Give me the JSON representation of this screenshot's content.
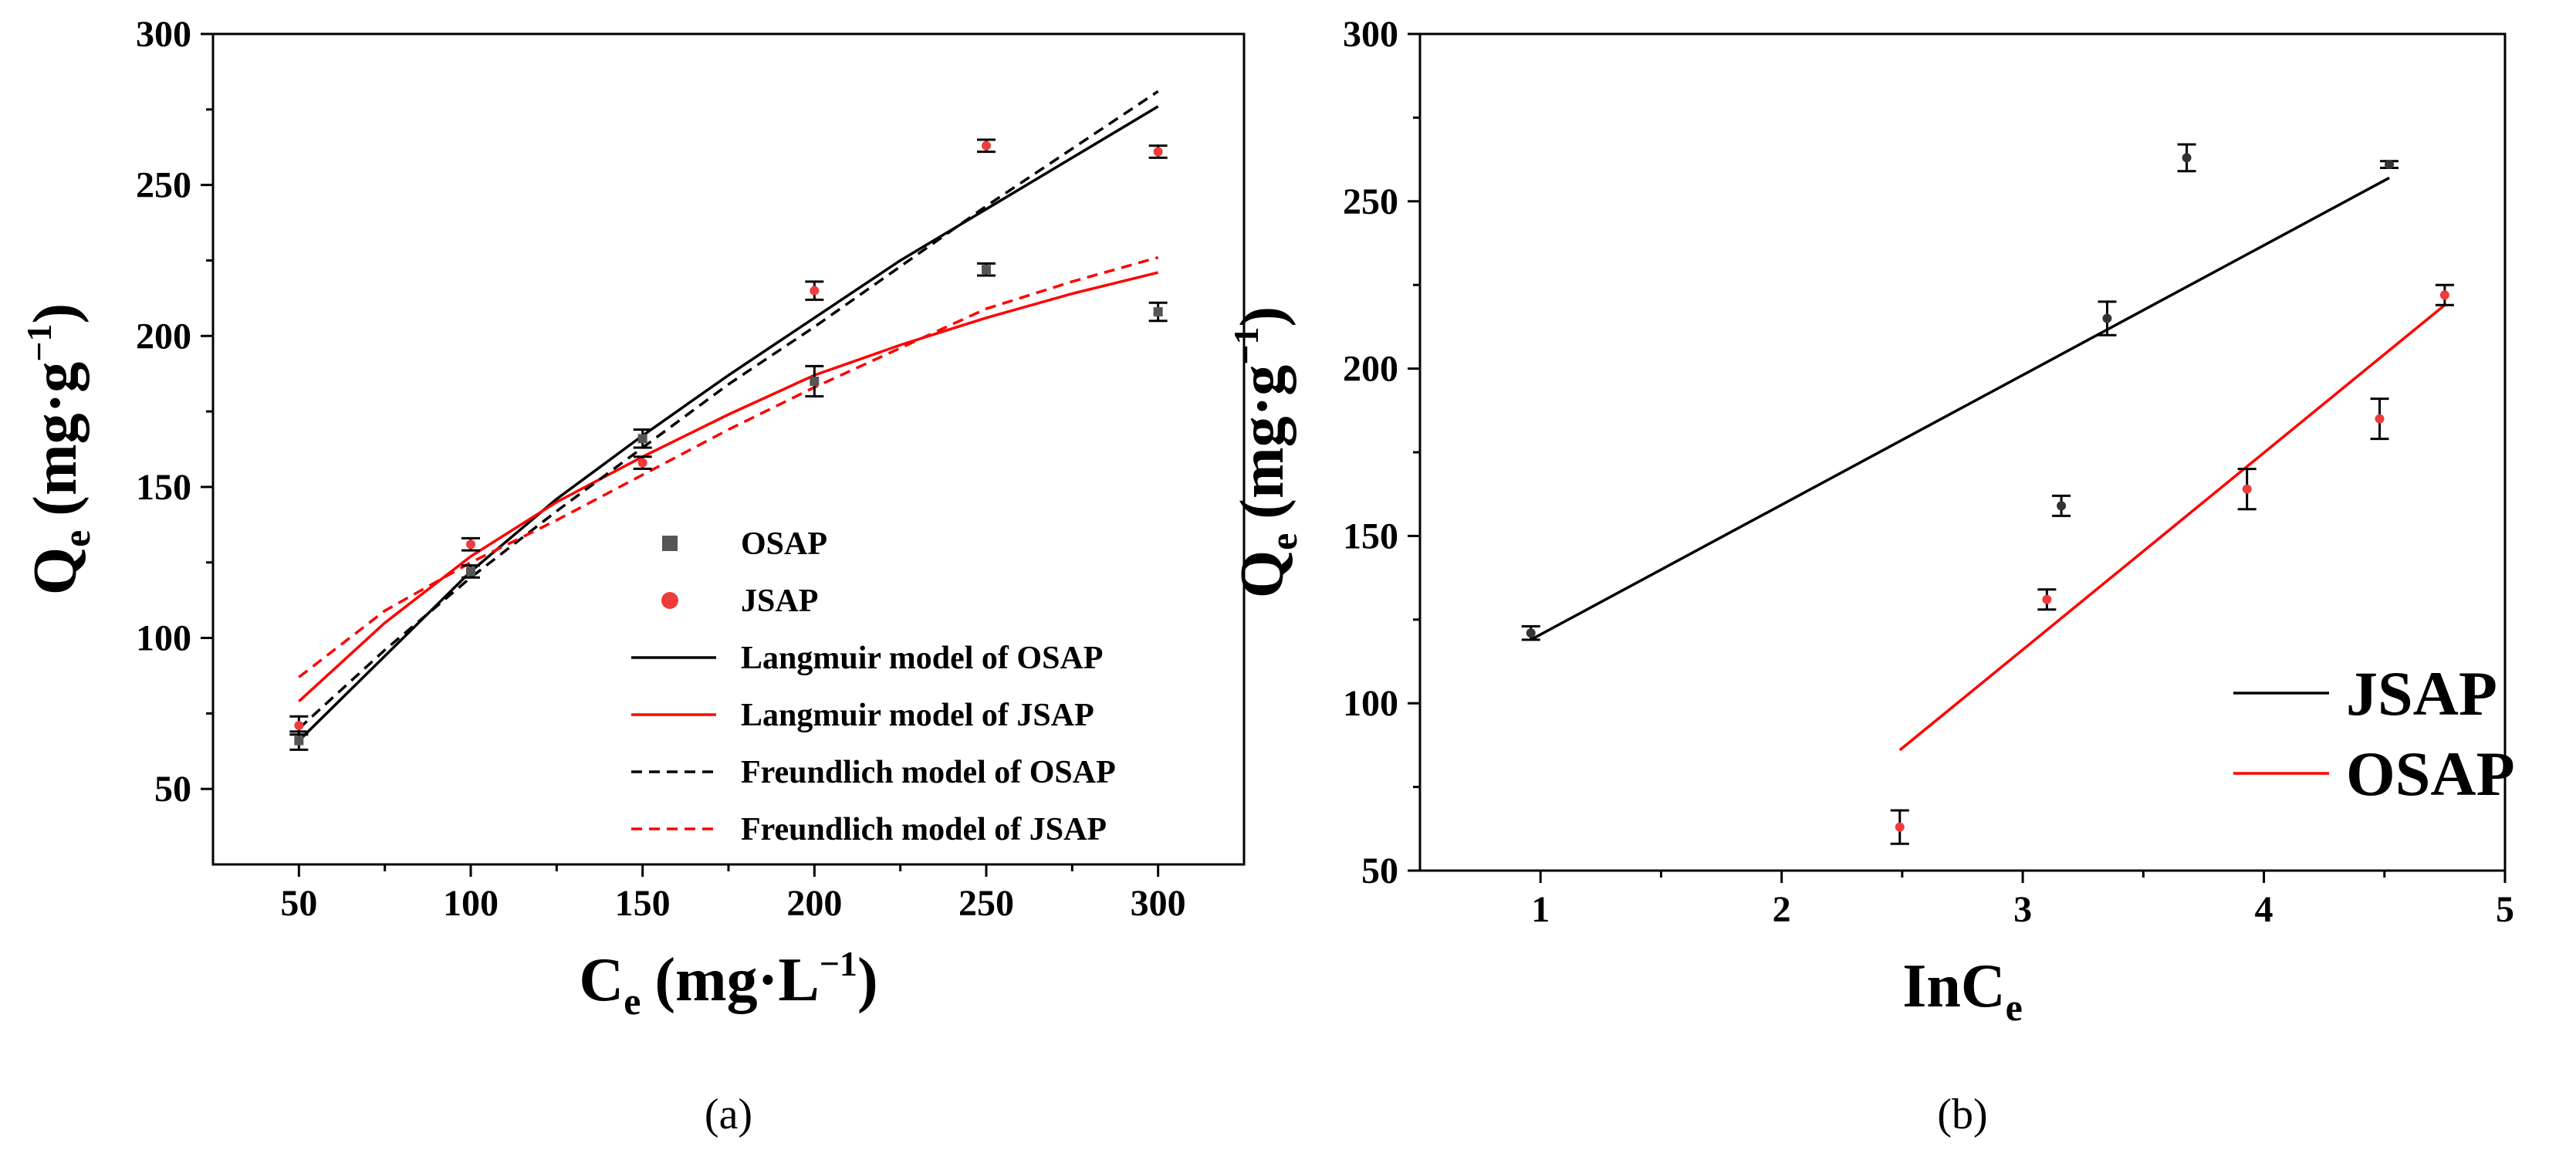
{
  "chart_data": [
    {
      "type": "scatter",
      "panel_label": "(a)",
      "xlabel": {
        "base": "C",
        "sub": "e",
        "units": "(mg·L",
        "sup": "−1",
        "close": ")"
      },
      "ylabel": {
        "base": "Q",
        "sub": "e",
        "units": "(mg·g",
        "sup": "−1",
        "close": ")"
      },
      "xlim": [
        25,
        325
      ],
      "ylim": [
        25,
        300
      ],
      "xticks": [
        50,
        100,
        150,
        200,
        250,
        300
      ],
      "yticks": [
        50,
        100,
        150,
        200,
        250,
        300
      ],
      "legend_position": "center-right",
      "points": [
        {
          "name": "OSAP",
          "color": "#555555",
          "x": [
            50,
            100,
            150,
            200,
            250,
            300
          ],
          "y": [
            66,
            122,
            166,
            185,
            222,
            208
          ],
          "err": [
            3,
            2,
            3,
            5,
            2,
            3
          ]
        },
        {
          "name": "JSAP",
          "color": "#ee3b3b",
          "x": [
            50,
            100,
            150,
            200,
            250,
            300
          ],
          "y": [
            71,
            131,
            158,
            215,
            263,
            261
          ],
          "err": [
            3,
            2,
            2,
            3,
            2,
            2
          ]
        }
      ],
      "fits": [
        {
          "name": "Langmuir model of OSAP",
          "color": "#000000",
          "dashed": false,
          "x": [
            50,
            75,
            100,
            125,
            150,
            175,
            200,
            225,
            250,
            275,
            300
          ],
          "y": [
            66,
            94,
            122,
            146,
            167,
            187,
            206,
            225,
            242,
            259,
            276
          ]
        },
        {
          "name": "Langmuir model of JSAP",
          "color": "#ff0000",
          "dashed": false,
          "x": [
            50,
            75,
            100,
            125,
            150,
            175,
            200,
            225,
            250,
            275,
            300
          ],
          "y": [
            79,
            105,
            127,
            145,
            160,
            174,
            187,
            197,
            206,
            214,
            221
          ]
        },
        {
          "name": "Freundlich model of OSAP",
          "color": "#000000",
          "dashed": true,
          "x": [
            50,
            75,
            100,
            125,
            150,
            175,
            200,
            225,
            250,
            275,
            300
          ],
          "y": [
            70,
            96,
            120,
            142,
            163,
            184,
            203,
            223,
            243,
            262,
            281
          ]
        },
        {
          "name": "Freundlich model of JSAP",
          "color": "#ff0000",
          "dashed": true,
          "x": [
            50,
            75,
            100,
            125,
            150,
            175,
            200,
            225,
            250,
            275,
            300
          ],
          "y": [
            87,
            109,
            125,
            139,
            154,
            169,
            183,
            196,
            209,
            218,
            226
          ]
        }
      ],
      "legend": [
        "OSAP",
        "JSAP",
        "Langmuir model of OSAP",
        "Langmuir model of JSAP",
        "Freundlich model of OSAP",
        "Freundlich model of JSAP"
      ]
    },
    {
      "type": "scatter",
      "panel_label": "(b)",
      "xlabel": {
        "base": "InC",
        "sub": "e"
      },
      "ylabel": {
        "base": "Q",
        "sub": "e",
        "units": "(mg·g",
        "sup": "−1",
        "close": ")"
      },
      "xlim": [
        0.5,
        5
      ],
      "ylim": [
        50,
        300
      ],
      "xticks": [
        1,
        2,
        3,
        4,
        5
      ],
      "yticks": [
        50,
        100,
        150,
        200,
        250,
        300
      ],
      "legend_position": "bottom-right",
      "points": [
        {
          "name": "black points",
          "color": "#333333",
          "x": [
            0.96,
            3.16,
            3.35,
            3.68,
            4.52
          ],
          "y": [
            121,
            159,
            215,
            263,
            261
          ],
          "err": [
            2,
            3,
            5,
            4,
            1
          ]
        },
        {
          "name": "red points",
          "color": "#ee3b3b",
          "x": [
            2.49,
            3.1,
            3.93,
            4.48,
            4.75
          ],
          "y": [
            63,
            131,
            164,
            185,
            222
          ],
          "err": [
            5,
            3,
            6,
            6,
            3
          ]
        }
      ],
      "fits": [
        {
          "name": "JSAP",
          "color": "#000000",
          "dashed": false,
          "x": [
            0.96,
            4.52
          ],
          "y": [
            119,
            257
          ]
        },
        {
          "name": "OSAP",
          "color": "#ff0000",
          "dashed": false,
          "x": [
            2.49,
            4.75
          ],
          "y": [
            86,
            219
          ]
        }
      ],
      "legend": [
        "JSAP",
        "OSAP"
      ]
    }
  ]
}
